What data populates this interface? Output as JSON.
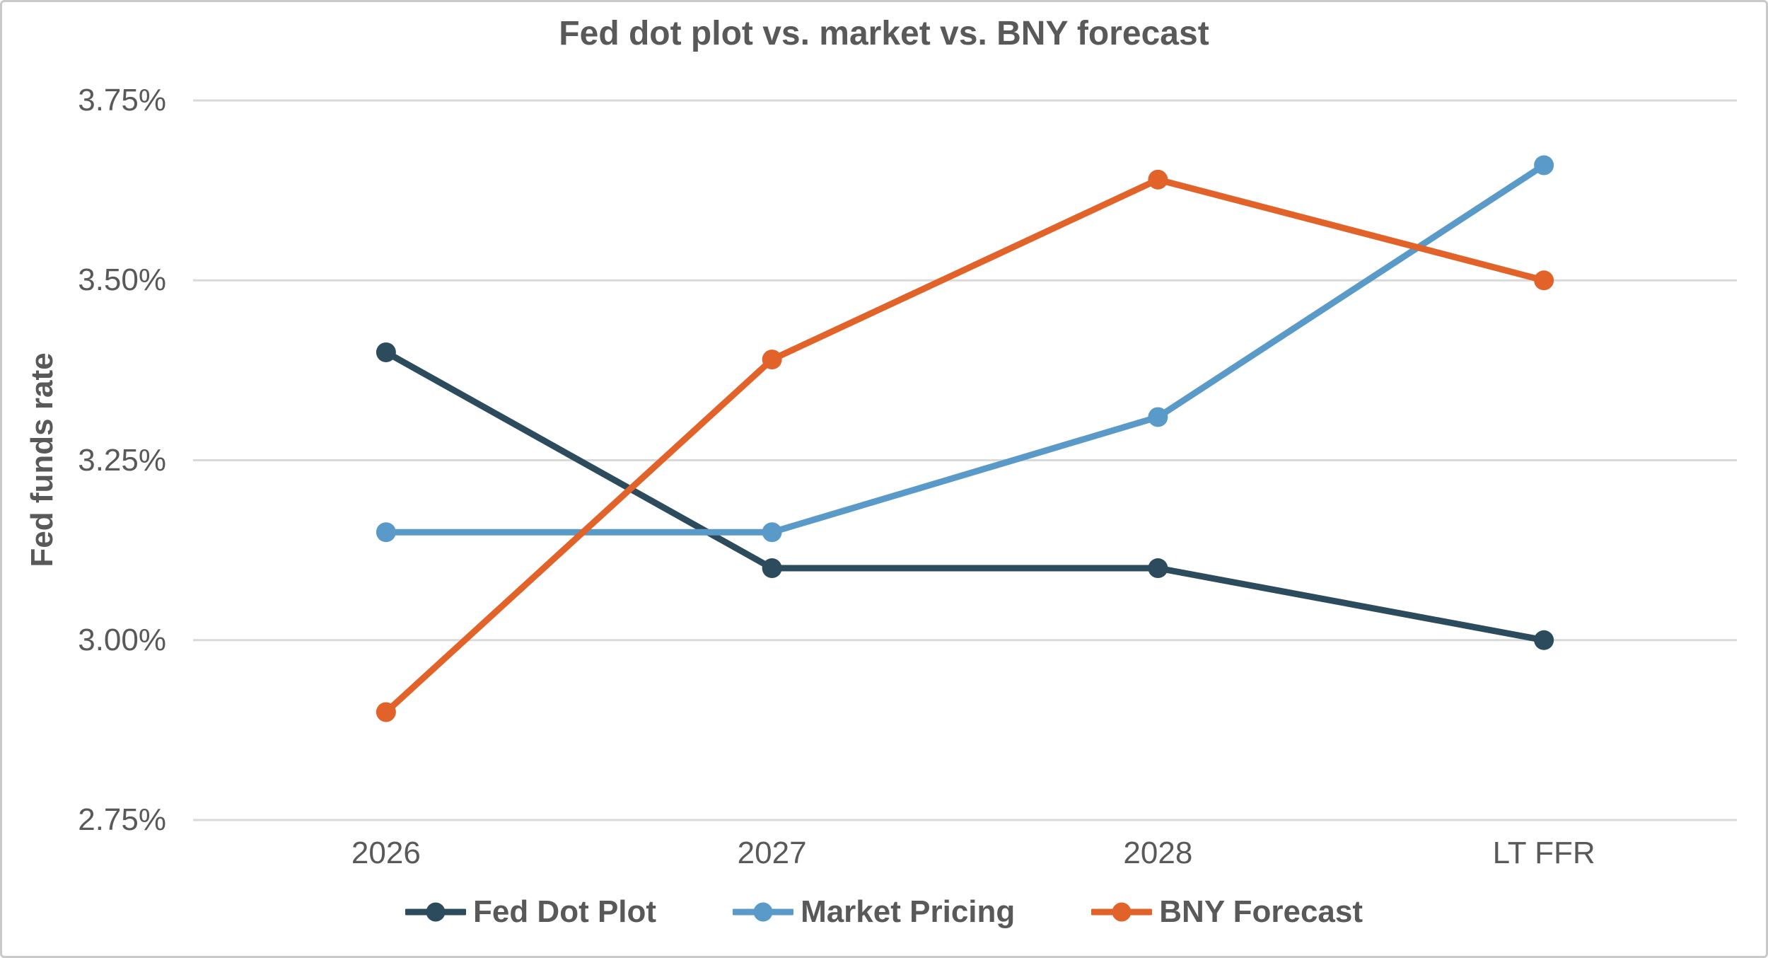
{
  "chart_data": {
    "type": "line",
    "title": "Fed dot plot vs. market vs. BNY forecast",
    "xlabel": "",
    "ylabel": "Fed funds rate",
    "categories": [
      "2026",
      "2027",
      "2028",
      "LT FFR"
    ],
    "series": [
      {
        "name": "Fed Dot Plot",
        "color": "#2C4B5C",
        "values": [
          3.4,
          3.1,
          3.1,
          3.0
        ]
      },
      {
        "name": "Market Pricing",
        "color": "#5A9AC9",
        "values": [
          3.15,
          3.15,
          3.31,
          3.66
        ]
      },
      {
        "name": "BNY Forecast",
        "color": "#E2632A",
        "values": [
          2.9,
          3.39,
          3.64,
          3.5
        ]
      }
    ],
    "ylim": [
      2.75,
      3.75
    ],
    "yticks": [
      {
        "value": 3.75,
        "label": "3.75%"
      },
      {
        "value": 3.5,
        "label": "3.50%"
      },
      {
        "value": 3.25,
        "label": "3.25%"
      },
      {
        "value": 3.0,
        "label": "3.00%"
      },
      {
        "value": 2.75,
        "label": "2.75%"
      }
    ],
    "grid": true,
    "legend_position": "bottom",
    "colors": {
      "grid_line": "#D9D9D9",
      "text": "#595959",
      "frame_border": "#C9C9C9",
      "background": "#FFFFFF"
    }
  }
}
